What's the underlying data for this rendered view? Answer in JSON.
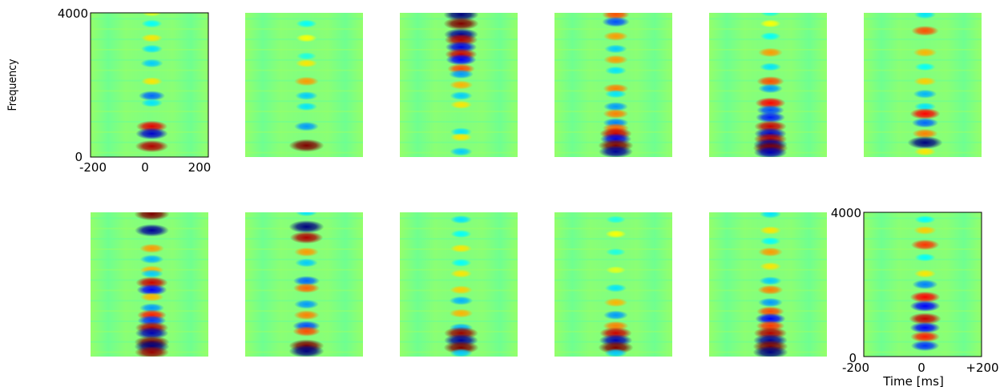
{
  "chart_data": {
    "type": "heatmap",
    "layout_grid": {
      "rows": 2,
      "cols": 6
    },
    "colormap": "jet",
    "colors": {
      "background": "#88f07a",
      "low": "#00008f",
      "mid": "#7fff7f",
      "high": "#800000"
    },
    "xlim": [
      -200,
      200
    ],
    "ylim": [
      0,
      4000
    ],
    "axes_labels": {
      "first_panel": {
        "ylabel": "Frequency",
        "yticks": [
          "0",
          "4000"
        ],
        "xticks": [
          "-200",
          "0",
          "200"
        ]
      },
      "last_panel": {
        "xlabel": "Time [ms]",
        "yticks": [
          "0",
          "4000"
        ],
        "xticks": [
          "-200",
          "0",
          "+200"
        ]
      }
    },
    "panels": [
      {
        "index": 1,
        "blobs": [
          [
            4000,
            0.2
          ],
          [
            3700,
            -0.25
          ],
          [
            3300,
            0.3
          ],
          [
            3000,
            -0.3
          ],
          [
            2600,
            -0.35
          ],
          [
            2100,
            0.3
          ],
          [
            1700,
            -0.55
          ],
          [
            1500,
            -0.3
          ],
          [
            850,
            0.8
          ],
          [
            650,
            -0.85
          ],
          [
            300,
            0.9
          ]
        ]
      },
      {
        "index": 2,
        "blobs": [
          [
            3700,
            -0.25
          ],
          [
            3300,
            0.25
          ],
          [
            2800,
            -0.2
          ],
          [
            2600,
            0.3
          ],
          [
            2100,
            0.45
          ],
          [
            1700,
            -0.35
          ],
          [
            1400,
            -0.3
          ],
          [
            850,
            -0.45
          ],
          [
            320,
            1.0
          ]
        ]
      },
      {
        "index": 3,
        "blobs": [
          [
            3950,
            -1.0
          ],
          [
            3700,
            1.0
          ],
          [
            3400,
            -0.95
          ],
          [
            3250,
            0.9
          ],
          [
            3050,
            -0.8
          ],
          [
            2850,
            0.85
          ],
          [
            2700,
            -0.75
          ],
          [
            2450,
            0.6
          ],
          [
            2300,
            -0.45
          ],
          [
            2000,
            0.4
          ],
          [
            1700,
            -0.35
          ],
          [
            1450,
            0.3
          ],
          [
            700,
            -0.3
          ],
          [
            550,
            0.3
          ],
          [
            150,
            -0.35
          ]
        ]
      },
      {
        "index": 4,
        "blobs": [
          [
            3950,
            0.6
          ],
          [
            3750,
            -0.6
          ],
          [
            3350,
            0.45
          ],
          [
            3000,
            -0.35
          ],
          [
            2700,
            0.45
          ],
          [
            2400,
            -0.3
          ],
          [
            1900,
            0.5
          ],
          [
            1750,
            -0.3
          ],
          [
            1400,
            -0.45
          ],
          [
            1200,
            0.5
          ],
          [
            950,
            -0.5
          ],
          [
            800,
            0.55
          ],
          [
            650,
            0.85
          ],
          [
            500,
            -0.8
          ],
          [
            320,
            1.0
          ],
          [
            150,
            -0.95
          ]
        ]
      },
      {
        "index": 5,
        "blobs": [
          [
            4000,
            -0.2
          ],
          [
            3700,
            0.25
          ],
          [
            3350,
            -0.25
          ],
          [
            2900,
            0.45
          ],
          [
            2500,
            -0.3
          ],
          [
            2100,
            0.6
          ],
          [
            1900,
            -0.45
          ],
          [
            1500,
            0.75
          ],
          [
            1300,
            -0.6
          ],
          [
            1100,
            -0.7
          ],
          [
            850,
            0.85
          ],
          [
            650,
            -0.85
          ],
          [
            500,
            0.9
          ],
          [
            350,
            -0.95
          ],
          [
            250,
            1.0
          ],
          [
            130,
            -0.9
          ]
        ]
      },
      {
        "index": 6,
        "blobs": [
          [
            3950,
            -0.3
          ],
          [
            3500,
            0.6
          ],
          [
            2900,
            0.4
          ],
          [
            2500,
            -0.25
          ],
          [
            2100,
            0.35
          ],
          [
            1750,
            -0.4
          ],
          [
            1400,
            -0.3
          ],
          [
            1200,
            0.75
          ],
          [
            950,
            -0.55
          ],
          [
            650,
            0.5
          ],
          [
            400,
            -1.0
          ],
          [
            150,
            0.3
          ]
        ]
      },
      {
        "index": 7,
        "blobs": [
          [
            3950,
            1.0
          ],
          [
            3500,
            -0.95
          ],
          [
            3000,
            0.45
          ],
          [
            2700,
            -0.4
          ],
          [
            2400,
            0.4
          ],
          [
            2300,
            -0.35
          ],
          [
            2050,
            0.85
          ],
          [
            1850,
            -0.75
          ],
          [
            1650,
            0.4
          ],
          [
            1350,
            -0.45
          ],
          [
            1150,
            0.7
          ],
          [
            1000,
            -0.65
          ],
          [
            800,
            0.9
          ],
          [
            650,
            -0.9
          ],
          [
            400,
            1.0
          ],
          [
            280,
            -1.0
          ],
          [
            120,
            0.95
          ]
        ]
      },
      {
        "index": 8,
        "blobs": [
          [
            4000,
            -0.3
          ],
          [
            3600,
            -1.0
          ],
          [
            3300,
            0.9
          ],
          [
            2900,
            0.45
          ],
          [
            2600,
            -0.35
          ],
          [
            2100,
            -0.55
          ],
          [
            1900,
            0.55
          ],
          [
            1450,
            -0.45
          ],
          [
            1150,
            0.5
          ],
          [
            850,
            -0.6
          ],
          [
            700,
            0.6
          ],
          [
            300,
            1.0
          ],
          [
            150,
            -1.0
          ]
        ]
      },
      {
        "index": 9,
        "blobs": [
          [
            3800,
            -0.3
          ],
          [
            3400,
            -0.25
          ],
          [
            3000,
            0.3
          ],
          [
            2600,
            -0.25
          ],
          [
            2300,
            0.3
          ],
          [
            1850,
            0.35
          ],
          [
            1550,
            -0.4
          ],
          [
            1200,
            0.4
          ],
          [
            800,
            -0.4
          ],
          [
            650,
            0.95
          ],
          [
            450,
            -0.95
          ],
          [
            250,
            1.0
          ],
          [
            100,
            -0.35
          ]
        ]
      },
      {
        "index": 10,
        "blobs": [
          [
            3800,
            -0.2
          ],
          [
            3400,
            0.25
          ],
          [
            2900,
            -0.2
          ],
          [
            2400,
            0.2
          ],
          [
            1900,
            -0.3
          ],
          [
            1500,
            0.4
          ],
          [
            1150,
            -0.45
          ],
          [
            850,
            0.5
          ],
          [
            650,
            0.85
          ],
          [
            450,
            -0.9
          ],
          [
            250,
            1.0
          ],
          [
            100,
            -0.35
          ]
        ]
      },
      {
        "index": 11,
        "blobs": [
          [
            3950,
            -0.3
          ],
          [
            3500,
            0.3
          ],
          [
            3200,
            -0.25
          ],
          [
            2900,
            0.45
          ],
          [
            2500,
            0.3
          ],
          [
            2100,
            -0.35
          ],
          [
            1850,
            0.5
          ],
          [
            1500,
            -0.45
          ],
          [
            1250,
            0.6
          ],
          [
            1050,
            -0.75
          ],
          [
            850,
            0.65
          ],
          [
            650,
            0.9
          ],
          [
            450,
            -0.95
          ],
          [
            280,
            1.0
          ],
          [
            120,
            -1.0
          ]
        ]
      },
      {
        "index": 12,
        "blobs": [
          [
            3800,
            -0.25
          ],
          [
            3500,
            0.35
          ],
          [
            3100,
            0.65
          ],
          [
            2750,
            -0.25
          ],
          [
            2300,
            0.3
          ],
          [
            2000,
            -0.5
          ],
          [
            1650,
            0.75
          ],
          [
            1400,
            -0.75
          ],
          [
            1050,
            0.85
          ],
          [
            800,
            -0.75
          ],
          [
            550,
            0.7
          ],
          [
            300,
            -0.65
          ]
        ]
      }
    ]
  }
}
